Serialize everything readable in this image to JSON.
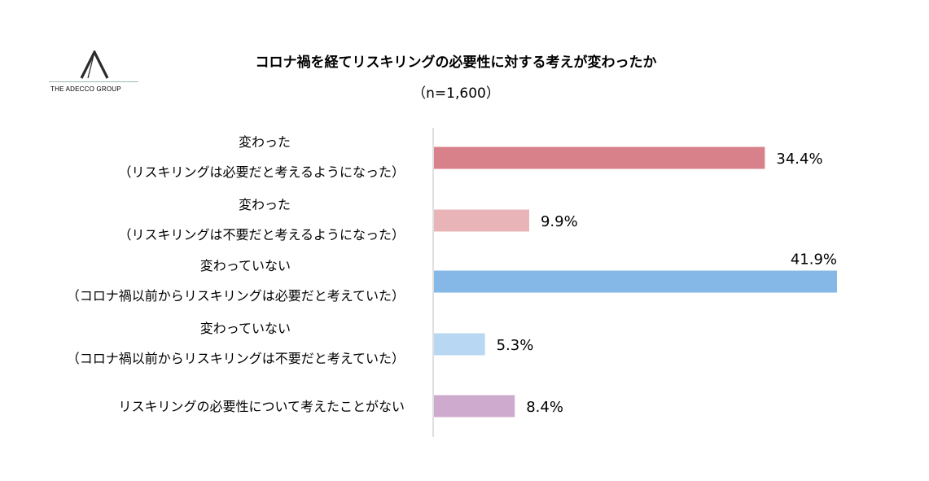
{
  "logo": {
    "text": "THE ADECCO GROUP",
    "icon": "adecco-a-logo-icon"
  },
  "chart_data": {
    "type": "bar",
    "orientation": "horizontal",
    "title": "コロナ禍を経てリスキリングの必要性に対する考えが変わったか",
    "subtitle": "（n=1,600）",
    "categories": [
      [
        "変わった",
        "（リスキリングは必要だと考えるようになった）"
      ],
      [
        "変わった",
        "（リスキリングは不要だと考えるようになった）"
      ],
      [
        "変わっていない",
        "（コロナ禍以前からリスキリングは必要だと考えていた）"
      ],
      [
        "変わっていない",
        "（コロナ禍以前からリスキリングは不要だと考えていた）"
      ],
      [
        "リスキリングの必要性について考えたことがない"
      ]
    ],
    "values": [
      34.4,
      9.9,
      41.9,
      5.3,
      8.4
    ],
    "value_labels": [
      "34.4%",
      "9.9%",
      "41.9%",
      "5.3%",
      "8.4%"
    ],
    "colors": [
      "#d9818a",
      "#e8b4b8",
      "#85b8e6",
      "#b8d7f2",
      "#cfaacf"
    ],
    "unit": "%",
    "xlim": [
      0,
      41.9
    ],
    "grid": false,
    "legend": "none"
  }
}
